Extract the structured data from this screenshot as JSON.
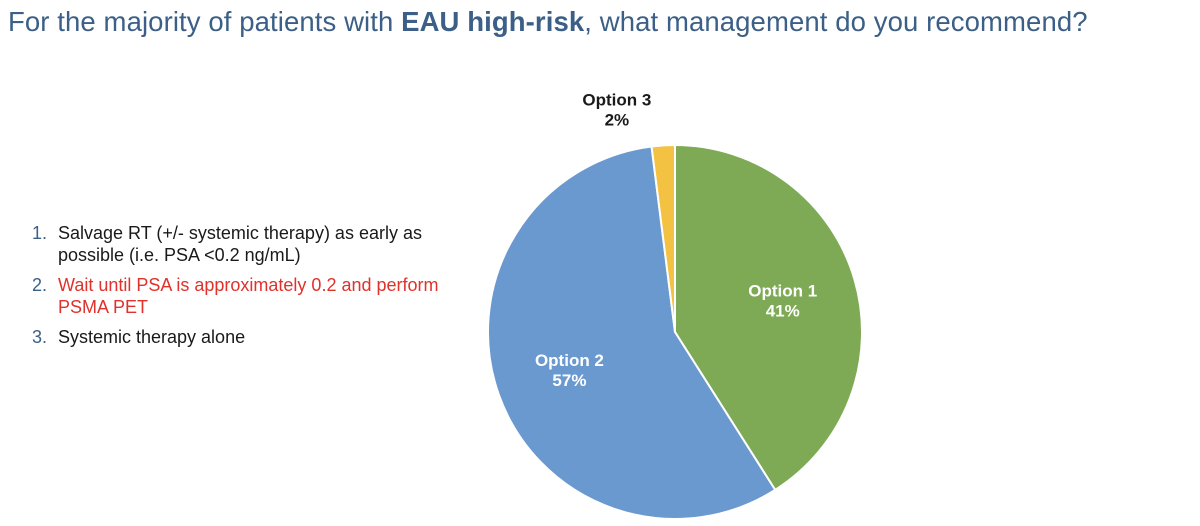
{
  "title": {
    "prefix": "For the majority of patients with ",
    "bold": "EAU high-risk",
    "suffix": ", what management do you recommend?"
  },
  "options": [
    {
      "num": "1.",
      "text": "Salvage RT (+/- systemic therapy) as early as possible (i.e. PSA <0.2 ng/mL)",
      "color": "#1a1a1a"
    },
    {
      "num": "2.",
      "text": "Wait until PSA is approximately 0.2 and perform PSMA PET",
      "color": "#e0312b"
    },
    {
      "num": "3.",
      "text": "Systemic therapy alone",
      "color": "#1a1a1a"
    }
  ],
  "chart_data": {
    "type": "pie",
    "categories": [
      "Option 1",
      "Option 2",
      "Option 3"
    ],
    "values": [
      41,
      57,
      2
    ],
    "labels": [
      "41%",
      "57%",
      "2%"
    ],
    "colors": [
      "#7eaa55",
      "#6a99cf",
      "#f4c242"
    ]
  }
}
